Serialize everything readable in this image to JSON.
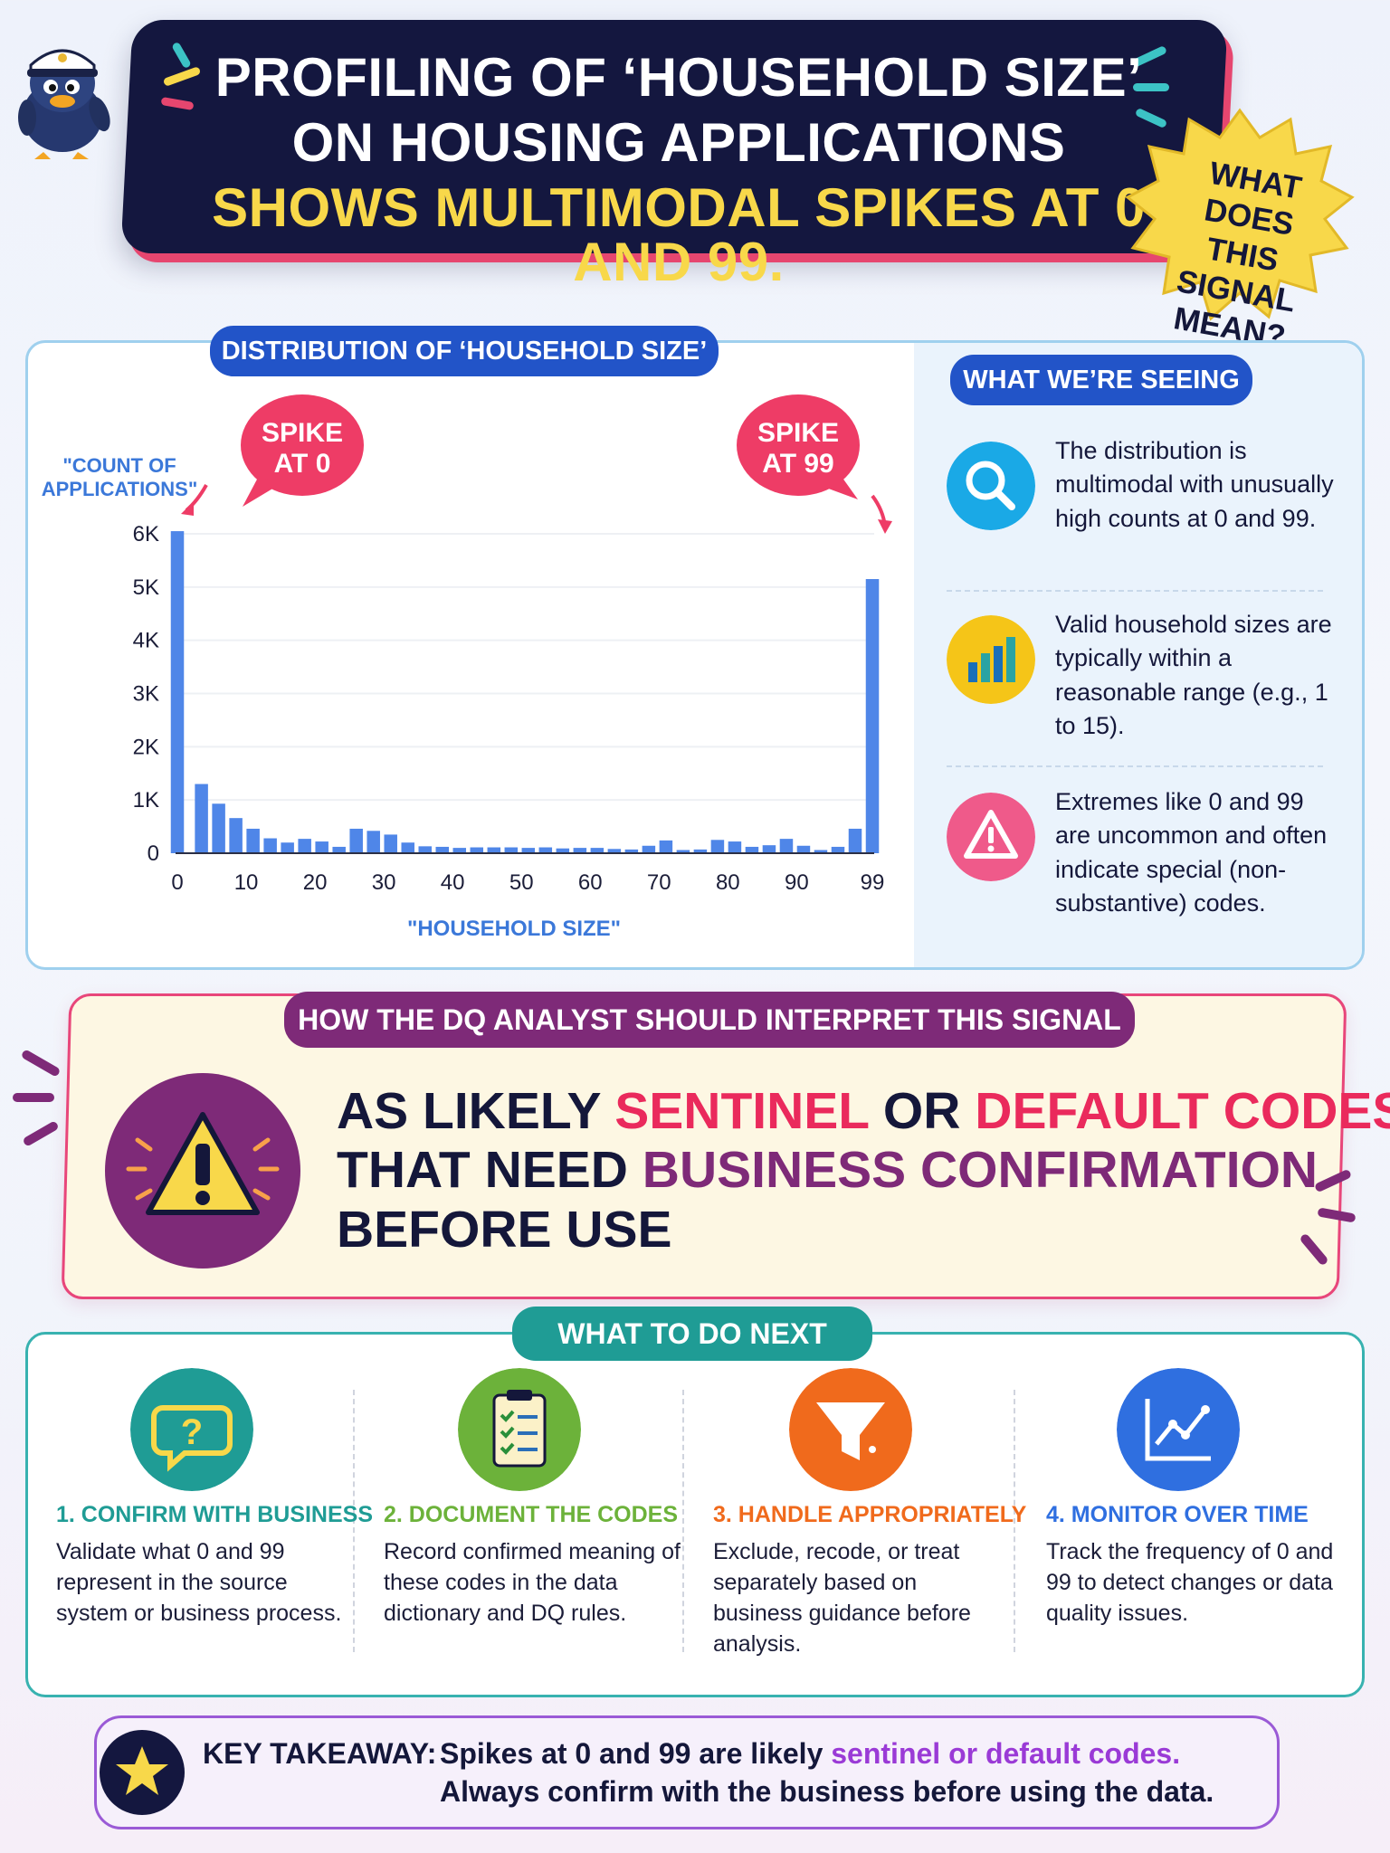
{
  "header": {
    "title_line_1": "PROFILING OF ‘HOUSEHOLD SIZE’",
    "title_line_2": "ON HOUSING APPLICATIONS",
    "title_line_3": "SHOWS MULTIMODAL SPIKES AT 0 AND 99.",
    "question_lines": [
      "WHAT DOES",
      "THIS SIGNAL",
      "MEAN?"
    ]
  },
  "chart_section": {
    "title": "DISTRIBUTION OF ‘HOUSEHOLD SIZE’",
    "callout_left": [
      "SPIKE",
      "AT 0"
    ],
    "callout_right": [
      "SPIKE",
      "AT 99"
    ]
  },
  "chart_data": {
    "type": "bar",
    "title": "DISTRIBUTION OF ‘HOUSEHOLD SIZE’",
    "ylabel": "\"COUNT OF APPLICATIONS\"",
    "xlabel": "\"HOUSEHOLD SIZE\"",
    "ylim": [
      0,
      6000
    ],
    "yticks": [
      0,
      1000,
      2000,
      3000,
      4000,
      5000,
      6000
    ],
    "ytick_labels": [
      "0",
      "1K",
      "2K",
      "3K",
      "4K",
      "5K",
      "6K"
    ],
    "xticks": [
      0,
      10,
      20,
      30,
      40,
      50,
      60,
      70,
      80,
      90,
      99
    ],
    "xtick_labels": [
      "0",
      "10",
      "20",
      "30",
      "40",
      "50",
      "60",
      "70",
      "80",
      "90",
      "99"
    ],
    "bar_color": "#4f86e8",
    "grid": true,
    "bars": [
      {
        "x": 0,
        "y": 6050
      },
      {
        "x": 3.5,
        "y": 1300
      },
      {
        "x": 6,
        "y": 930
      },
      {
        "x": 8.5,
        "y": 660
      },
      {
        "x": 11,
        "y": 460
      },
      {
        "x": 13.5,
        "y": 280
      },
      {
        "x": 16,
        "y": 200
      },
      {
        "x": 18.5,
        "y": 270
      },
      {
        "x": 21,
        "y": 220
      },
      {
        "x": 23.5,
        "y": 120
      },
      {
        "x": 26,
        "y": 460
      },
      {
        "x": 28.5,
        "y": 420
      },
      {
        "x": 31,
        "y": 350
      },
      {
        "x": 33.5,
        "y": 200
      },
      {
        "x": 36,
        "y": 130
      },
      {
        "x": 38.5,
        "y": 120
      },
      {
        "x": 41,
        "y": 100
      },
      {
        "x": 43.5,
        "y": 110
      },
      {
        "x": 46,
        "y": 110
      },
      {
        "x": 48.5,
        "y": 110
      },
      {
        "x": 51,
        "y": 100
      },
      {
        "x": 53.5,
        "y": 110
      },
      {
        "x": 56,
        "y": 90
      },
      {
        "x": 58.5,
        "y": 100
      },
      {
        "x": 61,
        "y": 100
      },
      {
        "x": 63.5,
        "y": 80
      },
      {
        "x": 66,
        "y": 70
      },
      {
        "x": 68.5,
        "y": 140
      },
      {
        "x": 71,
        "y": 240
      },
      {
        "x": 73.5,
        "y": 60
      },
      {
        "x": 76,
        "y": 70
      },
      {
        "x": 78.5,
        "y": 250
      },
      {
        "x": 81,
        "y": 220
      },
      {
        "x": 83.5,
        "y": 120
      },
      {
        "x": 86,
        "y": 150
      },
      {
        "x": 88.5,
        "y": 270
      },
      {
        "x": 91,
        "y": 140
      },
      {
        "x": 93.5,
        "y": 60
      },
      {
        "x": 96,
        "y": 120
      },
      {
        "x": 98.5,
        "y": 460
      },
      {
        "x": 101,
        "y": 5150
      }
    ]
  },
  "seeing": {
    "title": "WHAT WE’RE SEEING",
    "items": [
      {
        "icon": "magnifier-icon",
        "text": "The distribution is multimodal with unusually high counts at 0 and 99."
      },
      {
        "icon": "bar-chart-icon",
        "text": "Valid household sizes are typically within a reasonable range (e.g., 1 to 15)."
      },
      {
        "icon": "warning-triangle-icon",
        "text": "Extremes like 0 and 99 are uncommon and often indicate special (non-substantive) codes."
      }
    ]
  },
  "interpretation": {
    "title": "HOW THE DQ ANALYST SHOULD INTERPRET THIS SIGNAL",
    "line_1": [
      "AS LIKELY ",
      "SENTINEL",
      " OR ",
      "DEFAULT CODES"
    ],
    "line_2": [
      "THAT NEED ",
      "BUSINESS CONFIRMATION"
    ],
    "line_3": "BEFORE USE"
  },
  "next_steps": {
    "title": "WHAT TO DO NEXT",
    "steps": [
      {
        "heading": "1. CONFIRM WITH BUSINESS",
        "body": "Validate what 0 and 99 represent in the source system or business process.",
        "color": "#1f9c95",
        "icon": "question-bubble-icon"
      },
      {
        "heading": "2. DOCUMENT THE CODES",
        "body": "Record confirmed meaning of these codes in the data dictionary and DQ rules.",
        "color": "#6cb23a",
        "icon": "clipboard-checklist-icon"
      },
      {
        "heading": "3. HANDLE APPROPRIATELY",
        "body": "Exclude, recode, or treat separately based on business guidance before analysis.",
        "color": "#f06a1c",
        "icon": "funnel-icon"
      },
      {
        "heading": "4. MONITOR OVER TIME",
        "body": "Track the frequency of 0 and 99 to detect changes or data quality issues.",
        "color": "#2f6fe0",
        "icon": "line-chart-icon"
      }
    ]
  },
  "takeaway": {
    "label": "KEY TAKEAWAY:",
    "line_1_a": "Spikes at 0 and 99 are likely ",
    "line_1_b": "sentinel or default codes.",
    "line_2": "Always confirm with the business before using the data."
  }
}
